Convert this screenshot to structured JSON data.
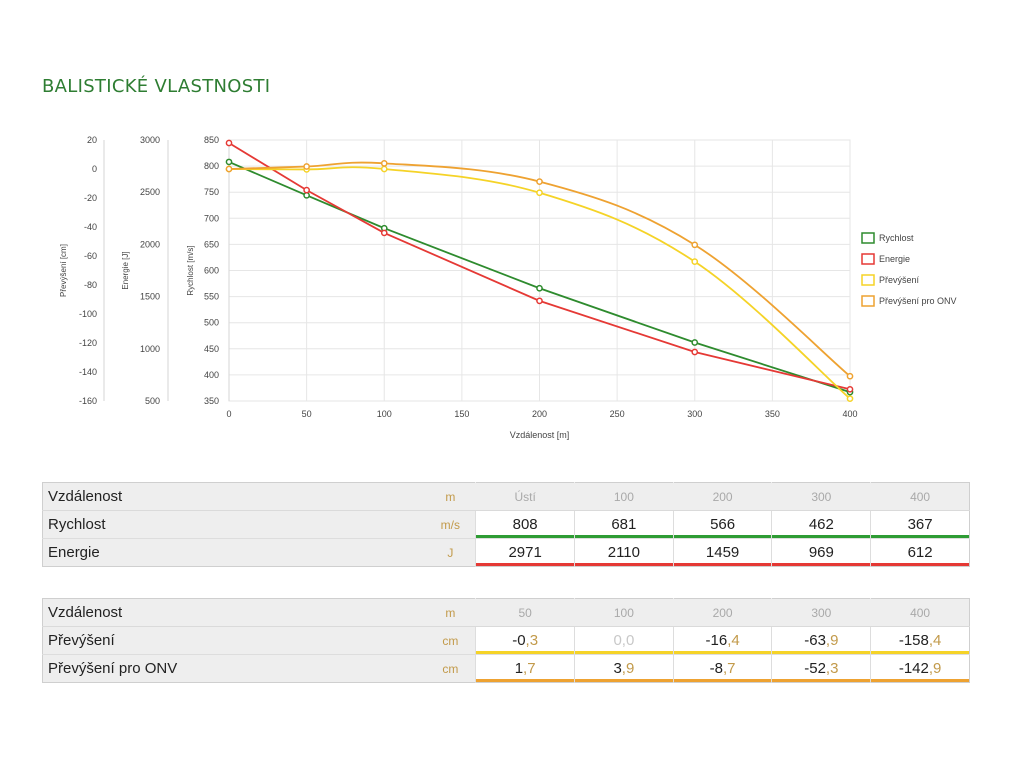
{
  "page": {
    "title": "BALISTICKÉ VLASTNOSTI"
  },
  "chart_data": {
    "type": "line",
    "x": [
      0,
      50,
      100,
      200,
      300,
      400
    ],
    "xlabel": "Vzdálenost [m]",
    "xlim": [
      0,
      400
    ],
    "xticks": [
      "0",
      "50",
      "100",
      "150",
      "200",
      "250",
      "300",
      "350",
      "400"
    ],
    "grid": true,
    "legend_position": "right",
    "axes": [
      {
        "id": "prevyseni",
        "label": "Převýšení [cm]",
        "lim": [
          -160,
          20
        ],
        "ticks": [
          "20",
          "0",
          "-20",
          "-40",
          "-60",
          "-80",
          "-100",
          "-120",
          "-140",
          "-160"
        ]
      },
      {
        "id": "energie",
        "label": "Energie [J]",
        "lim": [
          500,
          3000
        ],
        "ticks": [
          "3000",
          "2500",
          "2000",
          "1500",
          "1000",
          "500"
        ]
      },
      {
        "id": "rychlost",
        "label": "Rychlost [m/s]",
        "lim": [
          350,
          850
        ],
        "ticks": [
          "850",
          "800",
          "750",
          "700",
          "650",
          "600",
          "550",
          "500",
          "450",
          "400",
          "350"
        ]
      }
    ],
    "series": [
      {
        "name": "Rychlost",
        "axis": "rychlost",
        "color": "#2e8b2e",
        "smooth": false,
        "values": [
          808,
          744,
          681,
          566,
          462,
          367
        ]
      },
      {
        "name": "Energie",
        "axis": "energie",
        "color": "#e53935",
        "smooth": false,
        "values": [
          2971,
          2520,
          2110,
          1459,
          969,
          612
        ]
      },
      {
        "name": "Převýšení",
        "axis": "prevyseni",
        "color": "#f5d327",
        "smooth": true,
        "values": [
          0,
          -0.3,
          0,
          -16.4,
          -63.9,
          -158.4
        ]
      },
      {
        "name": "Převýšení pro ONV",
        "axis": "prevyseni",
        "color": "#eea231",
        "smooth": true,
        "values": [
          0,
          1.7,
          3.9,
          -8.7,
          -52.3,
          -142.9
        ]
      }
    ]
  },
  "tables": [
    {
      "header": {
        "label": "Vzdálenost",
        "unit": "m",
        "cols": [
          "Ústí",
          "100",
          "200",
          "300",
          "400"
        ]
      },
      "rows": [
        {
          "label": "Rychlost",
          "unit": "m/s",
          "color": "#2e9c34",
          "cells": [
            {
              "i": "808",
              "f": ""
            },
            {
              "i": "681",
              "f": ""
            },
            {
              "i": "566",
              "f": ""
            },
            {
              "i": "462",
              "f": ""
            },
            {
              "i": "367",
              "f": ""
            }
          ]
        },
        {
          "label": "Energie",
          "unit": "J",
          "color": "#e53935",
          "cells": [
            {
              "i": "2971",
              "f": ""
            },
            {
              "i": "2110",
              "f": ""
            },
            {
              "i": "1459",
              "f": ""
            },
            {
              "i": "969",
              "f": ""
            },
            {
              "i": "612",
              "f": ""
            }
          ]
        }
      ]
    },
    {
      "header": {
        "label": "Vzdálenost",
        "unit": "m",
        "cols": [
          "50",
          "100",
          "200",
          "300",
          "400"
        ]
      },
      "rows": [
        {
          "label": "Převýšení",
          "unit": "cm",
          "color": "#f5d327",
          "cells": [
            {
              "i": "-0",
              "f": ",3"
            },
            {
              "i": "0",
              "f": ",0"
            },
            {
              "i": "-16",
              "f": ",4"
            },
            {
              "i": "-63",
              "f": ",9"
            },
            {
              "i": "-158",
              "f": ",4"
            }
          ]
        },
        {
          "label": "Převýšení pro ONV",
          "unit": "cm",
          "color": "#eea231",
          "cells": [
            {
              "i": "1",
              "f": ",7"
            },
            {
              "i": "3",
              "f": ",9"
            },
            {
              "i": "-8",
              "f": ",7"
            },
            {
              "i": "-52",
              "f": ",3"
            },
            {
              "i": "-142",
              "f": ",9"
            }
          ]
        }
      ]
    }
  ]
}
